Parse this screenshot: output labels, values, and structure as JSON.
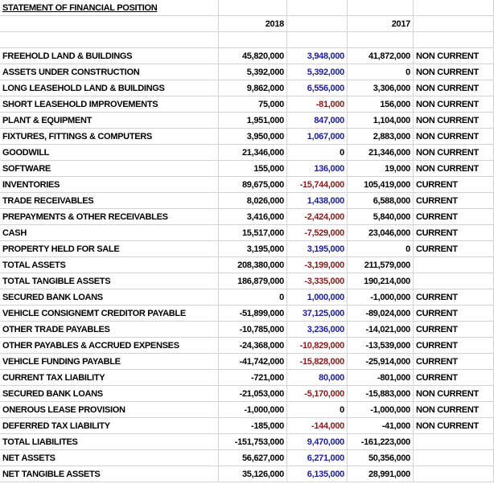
{
  "title": "STATEMENT OF FINANCIAL POSITION",
  "header": {
    "year_1": "2018",
    "year_2": "2017"
  },
  "rows": [
    {
      "item": "FREEHOLD LAND & BUILDINGS",
      "y2018": "45,820,000",
      "change": "3,948,000",
      "y2017": "41,872,000",
      "class": "NON CURRENT"
    },
    {
      "item": "ASSETS UNDER CONSTRUCTION",
      "y2018": "5,392,000",
      "change": "5,392,000",
      "y2017": "0",
      "class": "NON CURRENT"
    },
    {
      "item": "LONG LEASEHOLD LAND & BUILDINGS",
      "y2018": "9,862,000",
      "change": "6,556,000",
      "y2017": "3,306,000",
      "class": "NON CURRENT"
    },
    {
      "item": "SHORT LEASEHOLD IMPROVEMENTS",
      "y2018": "75,000",
      "change": "-81,000",
      "y2017": "156,000",
      "class": "NON CURRENT"
    },
    {
      "item": "PLANT & EQUIPMENT",
      "y2018": "1,951,000",
      "change": "847,000",
      "y2017": "1,104,000",
      "class": "NON CURRENT"
    },
    {
      "item": "FIXTURES, FITTINGS & COMPUTERS",
      "y2018": "3,950,000",
      "change": "1,067,000",
      "y2017": "2,883,000",
      "class": "NON CURRENT"
    },
    {
      "item": "GOODWILL",
      "y2018": "21,346,000",
      "change": "0",
      "y2017": "21,346,000",
      "class": "NON CURRENT"
    },
    {
      "item": "SOFTWARE",
      "y2018": "155,000",
      "change": "136,000",
      "y2017": "19,000",
      "class": "NON CURRENT"
    },
    {
      "item": "INVENTORIES",
      "y2018": "89,675,000",
      "change": "-15,744,000",
      "y2017": "105,419,000",
      "class": "CURRENT"
    },
    {
      "item": "TRADE RECEIVABLES",
      "y2018": "8,026,000",
      "change": "1,438,000",
      "y2017": "6,588,000",
      "class": "CURRENT"
    },
    {
      "item": "PREPAYMENTS & OTHER RECEIVABLES",
      "y2018": "3,416,000",
      "change": "-2,424,000",
      "y2017": "5,840,000",
      "class": "CURRENT"
    },
    {
      "item": "CASH",
      "y2018": "15,517,000",
      "change": "-7,529,000",
      "y2017": "23,046,000",
      "class": "CURRENT"
    },
    {
      "item": "PROPERTY HELD FOR SALE",
      "y2018": "3,195,000",
      "change": "3,195,000",
      "y2017": "0",
      "class": "CURRENT"
    },
    {
      "item": "TOTAL ASSETS",
      "y2018": "208,380,000",
      "change": "-3,199,000",
      "y2017": "211,579,000"
    },
    {
      "item": "TOTAL TANGIBLE ASSETS",
      "y2018": "186,879,000",
      "change": "-3,335,000",
      "y2017": "190,214,000"
    },
    {
      "item": "SECURED BANK LOANS",
      "y2018": "0",
      "change": "1,000,000",
      "y2017": "-1,000,000",
      "class": "CURRENT"
    },
    {
      "item": "VEHICLE CONSIGNEMT CREDITOR PAYABLE",
      "y2018": "-51,899,000",
      "change": "37,125,000",
      "y2017": "-89,024,000",
      "class": "CURRENT"
    },
    {
      "item": "OTHER TRADE PAYABLES",
      "y2018": "-10,785,000",
      "change": "3,236,000",
      "y2017": "-14,021,000",
      "class": "CURRENT"
    },
    {
      "item": "OTHER PAYABLES & ACCRUED EXPENSES",
      "y2018": "-24,368,000",
      "change": "-10,829,000",
      "y2017": "-13,539,000",
      "class": "CURRENT"
    },
    {
      "item": "VEHICLE FUNDING PAYABLE",
      "y2018": "-41,742,000",
      "change": "-15,828,000",
      "y2017": "-25,914,000",
      "class": "CURRENT"
    },
    {
      "item": "CURRENT TAX LIABILITY",
      "y2018": "-721,000",
      "change": "80,000",
      "y2017": "-801,000",
      "class": "CURRENT"
    },
    {
      "item": "SECURED BANK LOANS",
      "y2018": "-21,053,000",
      "change": "-5,170,000",
      "y2017": "-15,883,000",
      "class": "NON CURRENT"
    },
    {
      "item": "ONEROUS LEASE PROVISION",
      "y2018": "-1,000,000",
      "change": "0",
      "y2017": "-1,000,000",
      "class": "NON CURRENT"
    },
    {
      "item": "DEFERRED TAX LIABILITY",
      "y2018": "-185,000",
      "change": "-144,000",
      "y2017": "-41,000",
      "class": "NON CURRENT"
    },
    {
      "item": "TOTAL LIABILITES",
      "y2018": "-151,753,000",
      "change": "9,470,000",
      "y2017": "-161,223,000"
    },
    {
      "item": "NET ASSETS",
      "y2018": "56,627,000",
      "change": "6,271,000",
      "y2017": "50,356,000"
    },
    {
      "item": "NET TANGIBLE ASSETS",
      "y2018": "35,126,000",
      "change": "6,135,000",
      "y2017": "28,991,000"
    }
  ]
}
